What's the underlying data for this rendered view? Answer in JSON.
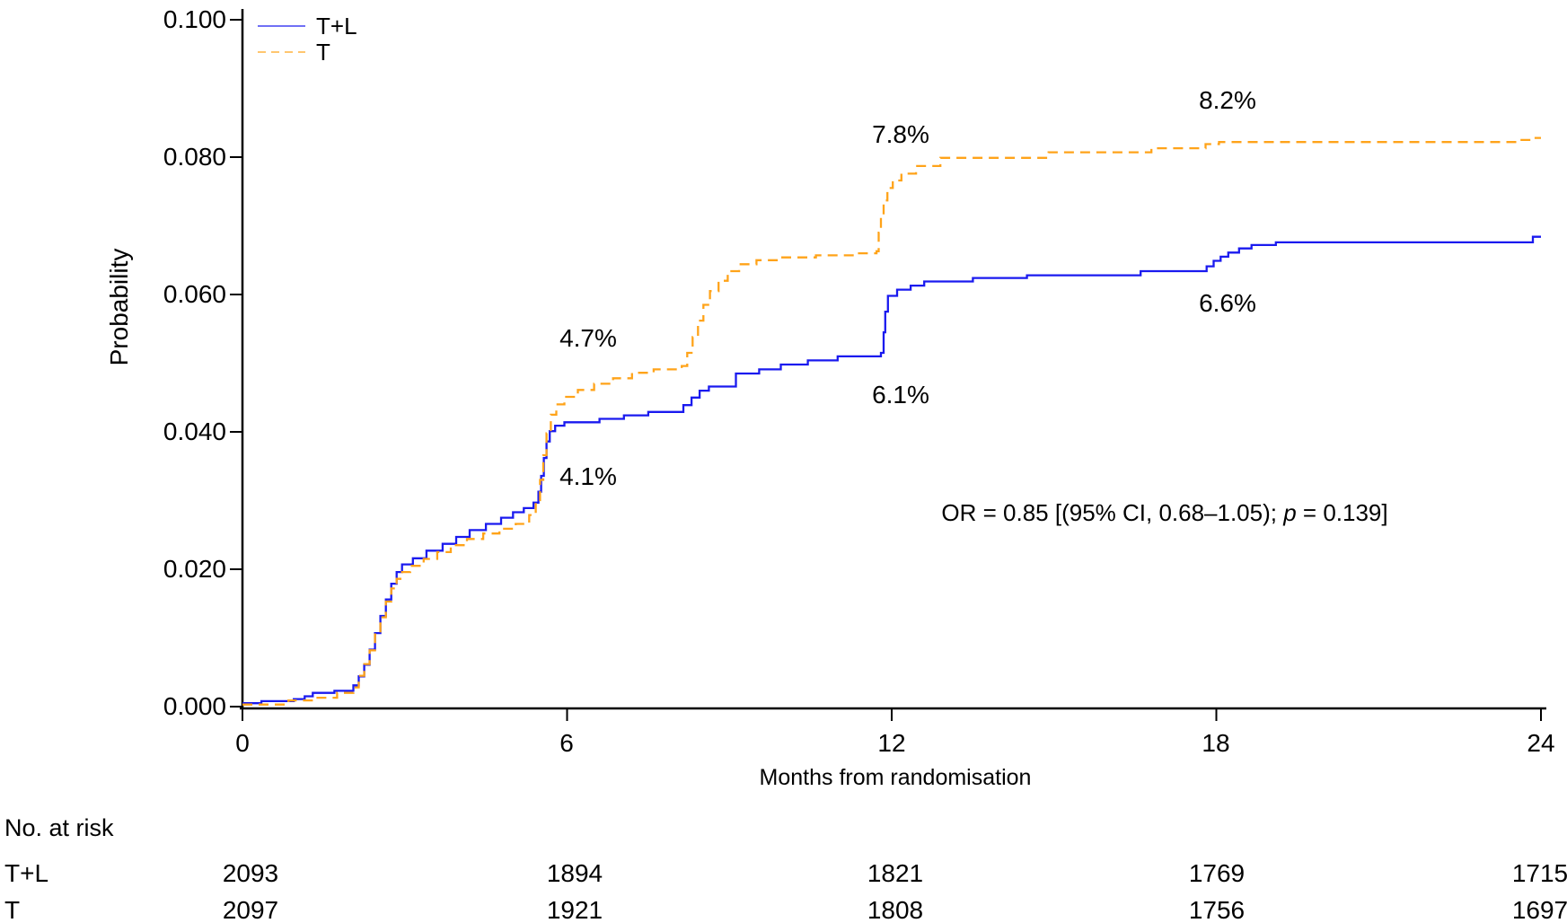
{
  "chart_data": {
    "type": "line",
    "subtype": "step-cumulative-incidence",
    "title": "",
    "xlabel": "Months from randomisation",
    "ylabel": "Probability",
    "xlim": [
      0,
      24
    ],
    "ylim": [
      0,
      0.1
    ],
    "grid": false,
    "x_ticks": {
      "values": [
        0,
        6,
        12,
        18,
        24
      ],
      "labels": [
        "0",
        "6",
        "12",
        "18",
        "24"
      ]
    },
    "y_ticks": {
      "values": [
        0,
        0.02,
        0.04,
        0.06,
        0.08,
        0.1
      ],
      "labels": [
        "0.000",
        "0.020",
        "0.040",
        "0.060",
        "0.080",
        "0.100"
      ]
    },
    "legend": {
      "position": "top-left",
      "entries": [
        {
          "label": "T+L",
          "color": "#1a1aef",
          "line": "solid"
        },
        {
          "label": "T",
          "color": "#ffa319",
          "line": "dashed"
        }
      ]
    },
    "series": [
      {
        "name": "T+L",
        "color": "#1a1aef",
        "dash": "solid",
        "step": "after",
        "points": [
          [
            0,
            0.0005
          ],
          [
            0.35,
            0.0008
          ],
          [
            0.95,
            0.0011
          ],
          [
            1.15,
            0.0015
          ],
          [
            1.3,
            0.002
          ],
          [
            1.7,
            0.0023
          ],
          [
            2.05,
            0.0031
          ],
          [
            2.15,
            0.0044
          ],
          [
            2.25,
            0.0061
          ],
          [
            2.35,
            0.0083
          ],
          [
            2.45,
            0.0107
          ],
          [
            2.55,
            0.0132
          ],
          [
            2.65,
            0.0156
          ],
          [
            2.75,
            0.0179
          ],
          [
            2.85,
            0.0196
          ],
          [
            2.95,
            0.0207
          ],
          [
            3.15,
            0.0216
          ],
          [
            3.4,
            0.0227
          ],
          [
            3.7,
            0.0237
          ],
          [
            3.95,
            0.0247
          ],
          [
            4.2,
            0.0257
          ],
          [
            4.5,
            0.0266
          ],
          [
            4.78,
            0.0275
          ],
          [
            5.0,
            0.0283
          ],
          [
            5.2,
            0.0289
          ],
          [
            5.38,
            0.0297
          ],
          [
            5.47,
            0.0313
          ],
          [
            5.52,
            0.0336
          ],
          [
            5.57,
            0.0362
          ],
          [
            5.62,
            0.0386
          ],
          [
            5.68,
            0.0401
          ],
          [
            5.78,
            0.0409
          ],
          [
            5.95,
            0.0414
          ],
          [
            6.6,
            0.0419
          ],
          [
            7.05,
            0.0424
          ],
          [
            7.5,
            0.0429
          ],
          [
            8.15,
            0.0439
          ],
          [
            8.3,
            0.045
          ],
          [
            8.45,
            0.046
          ],
          [
            8.62,
            0.0466
          ],
          [
            9.12,
            0.0485
          ],
          [
            9.55,
            0.0491
          ],
          [
            9.95,
            0.0498
          ],
          [
            10.45,
            0.0504
          ],
          [
            11.0,
            0.051
          ],
          [
            11.8,
            0.0515
          ],
          [
            11.85,
            0.0545
          ],
          [
            11.88,
            0.0575
          ],
          [
            11.93,
            0.0598
          ],
          [
            12.1,
            0.0607
          ],
          [
            12.35,
            0.0613
          ],
          [
            12.6,
            0.0619
          ],
          [
            13.5,
            0.0624
          ],
          [
            14.5,
            0.0628
          ],
          [
            16.6,
            0.0634
          ],
          [
            17.82,
            0.0641
          ],
          [
            17.95,
            0.0649
          ],
          [
            18.08,
            0.0655
          ],
          [
            18.22,
            0.0661
          ],
          [
            18.42,
            0.0667
          ],
          [
            18.65,
            0.0672
          ],
          [
            19.1,
            0.0676
          ],
          [
            23.85,
            0.0684
          ],
          [
            24,
            0.0684
          ]
        ]
      },
      {
        "name": "T",
        "color": "#ffa319",
        "dash": "dashed",
        "step": "after",
        "points": [
          [
            0,
            0.0003
          ],
          [
            0.85,
            0.0009
          ],
          [
            1.35,
            0.0013
          ],
          [
            1.75,
            0.002
          ],
          [
            2.05,
            0.0028
          ],
          [
            2.15,
            0.0045
          ],
          [
            2.25,
            0.0062
          ],
          [
            2.35,
            0.0082
          ],
          [
            2.45,
            0.0105
          ],
          [
            2.55,
            0.013
          ],
          [
            2.65,
            0.0153
          ],
          [
            2.75,
            0.0172
          ],
          [
            2.85,
            0.0186
          ],
          [
            2.95,
            0.0196
          ],
          [
            3.1,
            0.0205
          ],
          [
            3.35,
            0.0215
          ],
          [
            3.6,
            0.0225
          ],
          [
            3.85,
            0.0235
          ],
          [
            4.15,
            0.0244
          ],
          [
            4.45,
            0.0252
          ],
          [
            4.75,
            0.0259
          ],
          [
            5.05,
            0.0266
          ],
          [
            5.3,
            0.0279
          ],
          [
            5.42,
            0.0298
          ],
          [
            5.5,
            0.033
          ],
          [
            5.56,
            0.0366
          ],
          [
            5.62,
            0.0398
          ],
          [
            5.7,
            0.0425
          ],
          [
            5.8,
            0.044
          ],
          [
            5.95,
            0.0451
          ],
          [
            6.2,
            0.0461
          ],
          [
            6.5,
            0.047
          ],
          [
            6.85,
            0.0478
          ],
          [
            7.2,
            0.0486
          ],
          [
            7.6,
            0.0491
          ],
          [
            8.12,
            0.0496
          ],
          [
            8.22,
            0.0515
          ],
          [
            8.32,
            0.0538
          ],
          [
            8.42,
            0.0562
          ],
          [
            8.52,
            0.0585
          ],
          [
            8.64,
            0.0605
          ],
          [
            8.8,
            0.062
          ],
          [
            8.97,
            0.0634
          ],
          [
            9.18,
            0.0644
          ],
          [
            9.5,
            0.065
          ],
          [
            9.95,
            0.0654
          ],
          [
            10.6,
            0.0657
          ],
          [
            11.3,
            0.066
          ],
          [
            11.72,
            0.0663
          ],
          [
            11.76,
            0.069
          ],
          [
            11.8,
            0.0715
          ],
          [
            11.85,
            0.0737
          ],
          [
            11.92,
            0.0755
          ],
          [
            12.02,
            0.0766
          ],
          [
            12.18,
            0.0776
          ],
          [
            12.45,
            0.0787
          ],
          [
            12.9,
            0.0799
          ],
          [
            14.9,
            0.0807
          ],
          [
            16.8,
            0.0813
          ],
          [
            17.8,
            0.0819
          ],
          [
            18.05,
            0.0822
          ],
          [
            23.6,
            0.0825
          ],
          [
            23.85,
            0.0828
          ],
          [
            24,
            0.0828
          ]
        ]
      }
    ],
    "annotations": [
      {
        "text": "4.7%",
        "series": "T",
        "x": 6.4,
        "y": 0.0536
      },
      {
        "text": "4.1%",
        "series": "T+L",
        "x": 6.4,
        "y": 0.0335
      },
      {
        "text": "7.8%",
        "series": "T",
        "x": 12.2,
        "y": 0.0833
      },
      {
        "text": "6.1%",
        "series": "T+L",
        "x": 12.2,
        "y": 0.0454
      },
      {
        "text": "8.2%",
        "series": "T",
        "x": 18.2,
        "y": 0.0882
      },
      {
        "text": "6.6%",
        "series": "T+L",
        "x": 18.2,
        "y": 0.0587
      }
    ],
    "stats_note": {
      "text_prefix": "OR = 0.85 [(95% CI, 0.68–1.05); ",
      "italic": "p",
      "text_suffix": " = 0.139]",
      "x": 17.05,
      "y": 0.0282
    },
    "at_risk": {
      "title": "No. at risk",
      "time_points": [
        0,
        6,
        12,
        18,
        24
      ],
      "rows": [
        {
          "label": "T+L",
          "counts": [
            "2093",
            "1894",
            "1821",
            "1769",
            "1715"
          ]
        },
        {
          "label": "T",
          "counts": [
            "2097",
            "1921",
            "1808",
            "1756",
            "1697"
          ]
        }
      ]
    },
    "colors": {
      "axis": "#000000",
      "t_plus_l": "#1a1aef",
      "t": "#ffa319"
    }
  }
}
